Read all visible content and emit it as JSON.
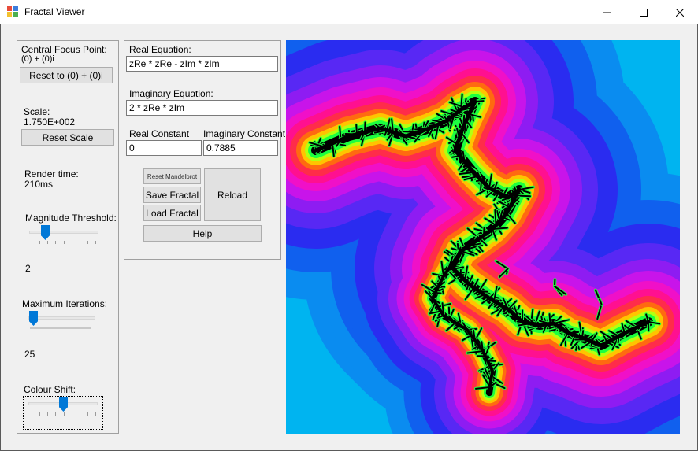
{
  "window": {
    "title": "Fractal Viewer"
  },
  "left": {
    "focus_label": "Central Focus Point:",
    "focus_value": "(0) + (0)i",
    "reset_focus_label": "Reset to (0) + (0)i",
    "scale_label": "Scale:",
    "scale_value": "1.750E+002",
    "reset_scale_label": "Reset Scale",
    "render_label": "Render time:",
    "render_value": "210ms",
    "magnitude_label": "Magnitude Threshold:",
    "magnitude_value": "2",
    "iterations_label": "Maximum Iterations:",
    "iterations_value": "25",
    "colour_label": "Colour Shift:"
  },
  "equations": {
    "real_label": "Real Equation:",
    "real_value": "zRe * zRe - zIm * zIm",
    "imag_label": "Imaginary Equation:",
    "imag_value": "2 * zRe * zIm",
    "real_const_label": "Real Constant",
    "real_const_value": "0",
    "imag_const_label": "Imaginary Constant",
    "imag_const_value": "0.7885"
  },
  "buttons": {
    "reset_mandelbrot": "Reset Mandelbrot",
    "save": "Save Fractal",
    "load": "Load Fractal",
    "reload": "Reload",
    "help": "Help"
  },
  "colors": {
    "outer": "#00b4f0",
    "accent": "#0078d7",
    "fractal_palette": [
      "#00b4f0",
      "#0a8cf0",
      "#1060ee",
      "#2a2cf0",
      "#5828f4",
      "#8e1cf2",
      "#c814ea",
      "#f010c8",
      "#ff1090",
      "#ff2c4a",
      "#ff6a10",
      "#ffc400",
      "#b4ff10",
      "#1cff40",
      "#000000"
    ]
  },
  "icons": {
    "app": "fractal-app-icon",
    "minimize": "minimize-icon",
    "maximize": "maximize-icon",
    "close": "close-icon"
  }
}
